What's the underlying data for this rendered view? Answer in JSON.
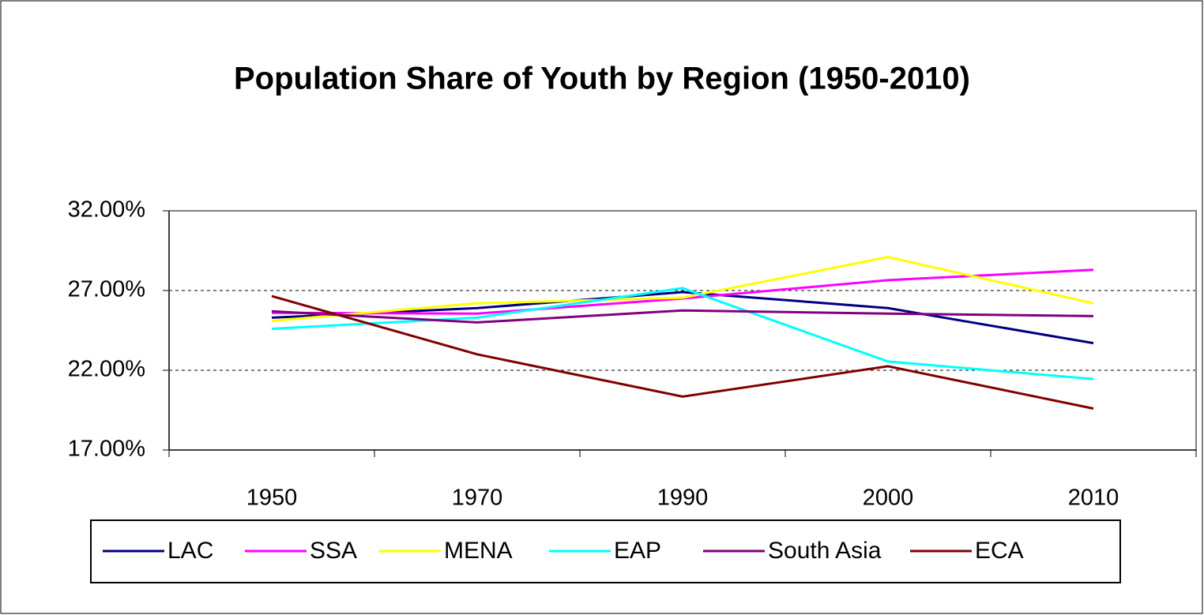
{
  "chart_data": {
    "type": "line",
    "title": "Population Share of Youth by Region (1950-2010)",
    "categories": [
      "1950",
      "1970",
      "1990",
      "2000",
      "2010"
    ],
    "series": [
      {
        "name": "LAC",
        "color": "#000080",
        "values": [
          25.3,
          25.9,
          26.9,
          25.9,
          23.7
        ]
      },
      {
        "name": "SSA",
        "color": "#ff00ff",
        "values": [
          25.6,
          25.55,
          26.5,
          27.65,
          28.3
        ]
      },
      {
        "name": "MENA",
        "color": "#ffff00",
        "values": [
          25.1,
          26.2,
          26.55,
          29.1,
          26.2
        ]
      },
      {
        "name": "EAP",
        "color": "#00ffff",
        "values": [
          24.6,
          25.3,
          27.15,
          22.55,
          21.45
        ]
      },
      {
        "name": "South Asia",
        "color": "#800080",
        "values": [
          25.7,
          25.0,
          25.75,
          25.55,
          25.4
        ]
      },
      {
        "name": "ECA",
        "color": "#800000",
        "values": [
          26.65,
          23.0,
          20.35,
          22.25,
          19.6
        ]
      }
    ],
    "ylim": [
      17,
      32
    ],
    "yticks": [
      {
        "value": 17,
        "label": "17.00%"
      },
      {
        "value": 22,
        "label": "22.00%"
      },
      {
        "value": 27,
        "label": "27.00%"
      },
      {
        "value": 32,
        "label": "32.00%"
      }
    ],
    "grid": true,
    "legend": "bottom"
  }
}
